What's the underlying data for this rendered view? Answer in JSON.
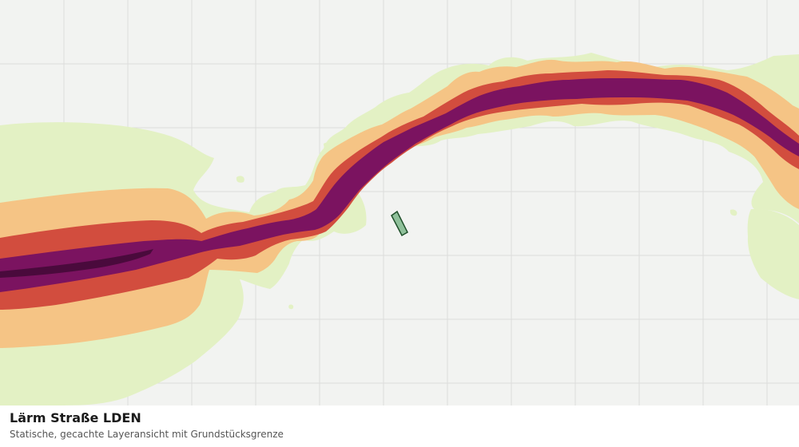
{
  "layer": {
    "title": "Lärm Straße LDEN",
    "subtitle": "Statische, gecachte Layeransicht mit Grundstücksgrenze"
  },
  "colors": {
    "background": "#f2f3f1",
    "grid": "#dcdcdc",
    "noise_band_1": "#e3f1c4",
    "noise_band_2": "#f5c485",
    "noise_band_3": "#d24d3e",
    "noise_band_4": "#7b1360",
    "noise_band_5": "#4a0a3c",
    "parcel_fill": "#8fc09a",
    "parcel_stroke": "#1f4f2a"
  }
}
